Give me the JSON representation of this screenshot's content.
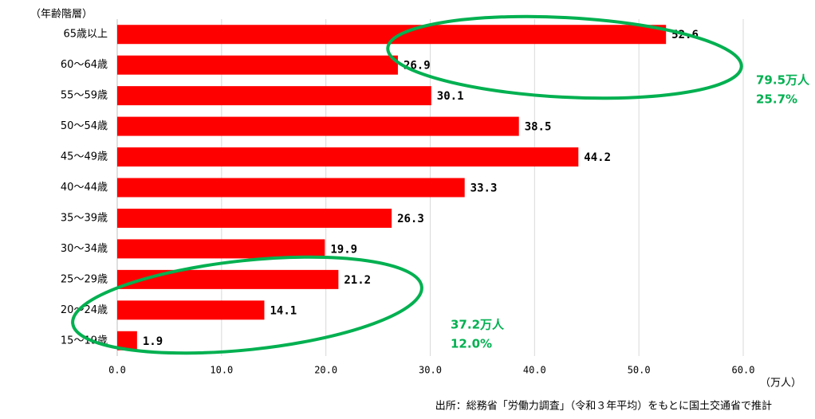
{
  "chart_data": {
    "type": "bar",
    "orientation": "horizontal",
    "y_axis_label": "（年齢階層）",
    "x_axis_label": "（万人）",
    "source": "出所：総務省「労働力調査」（令和３年平均）をもとに国土交通省で推計",
    "categories": [
      "65歳以上",
      "60～64歳",
      "55～59歳",
      "50～54歳",
      "45～49歳",
      "40～44歳",
      "35～39歳",
      "30～34歳",
      "25～29歳",
      "20～24歳",
      "15～19歳"
    ],
    "values": [
      52.6,
      26.9,
      30.1,
      38.5,
      44.2,
      33.3,
      26.3,
      19.9,
      21.2,
      14.1,
      1.9
    ],
    "color": "#ff0000",
    "xlim": [
      0,
      60
    ],
    "xticks": [
      {
        "value": 0,
        "label": "0.0"
      },
      {
        "value": 10,
        "label": "10.0"
      },
      {
        "value": 20,
        "label": "20.0"
      },
      {
        "value": 30,
        "label": "30.0"
      },
      {
        "value": 40,
        "label": "40.0"
      },
      {
        "value": 50,
        "label": "50.0"
      },
      {
        "value": 60,
        "label": "60.0"
      }
    ],
    "grid": true,
    "annotations": [
      "79.5万人",
      "25.7%",
      "37.2万人",
      "12.0%"
    ],
    "annotation_color": "#00b050"
  }
}
